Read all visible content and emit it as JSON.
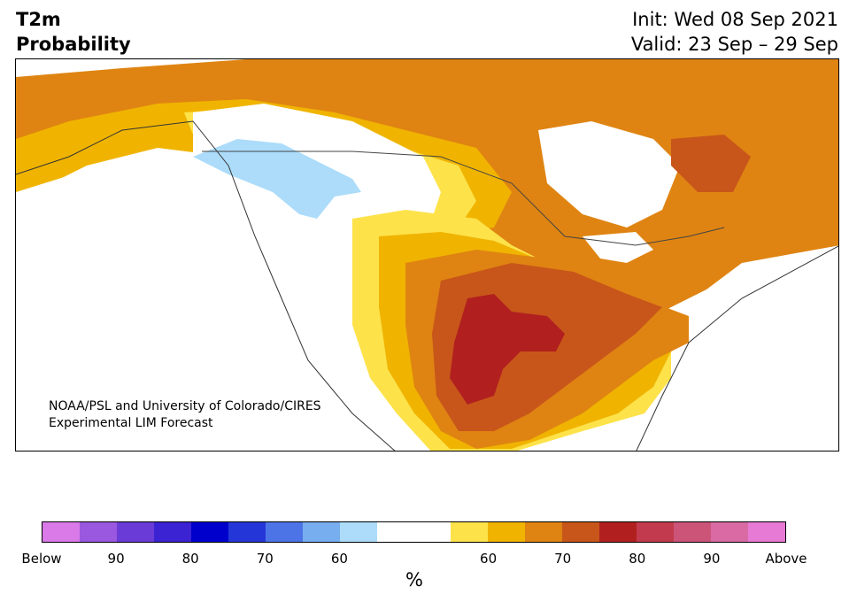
{
  "title": {
    "line1": "T2m",
    "line2": "Probability"
  },
  "init": "Init: Wed 08 Sep 2021",
  "valid": "Valid: 23 Sep – 29 Sep",
  "credit": {
    "line1": "NOAA/PSL and University of Colorado/CIRES",
    "line2": "Experimental LIM Forecast"
  },
  "colorbar": {
    "colors": [
      "#d97ae8",
      "#9a57e0",
      "#6a3bd6",
      "#3b22d2",
      "#0000cc",
      "#2536d8",
      "#4d74e6",
      "#77aef0",
      "#acdcfa",
      "#ffffff",
      "#ffffff",
      "#fde24a",
      "#f0b400",
      "#df8412",
      "#c8561a",
      "#b1201f",
      "#c23a4d",
      "#cc5479",
      "#d96aa4",
      "#e77ad4"
    ],
    "tick_labels": [
      "Below",
      "90",
      "80",
      "70",
      "60",
      "",
      "60",
      "70",
      "80",
      "90",
      "Above"
    ],
    "unit": "%"
  }
}
